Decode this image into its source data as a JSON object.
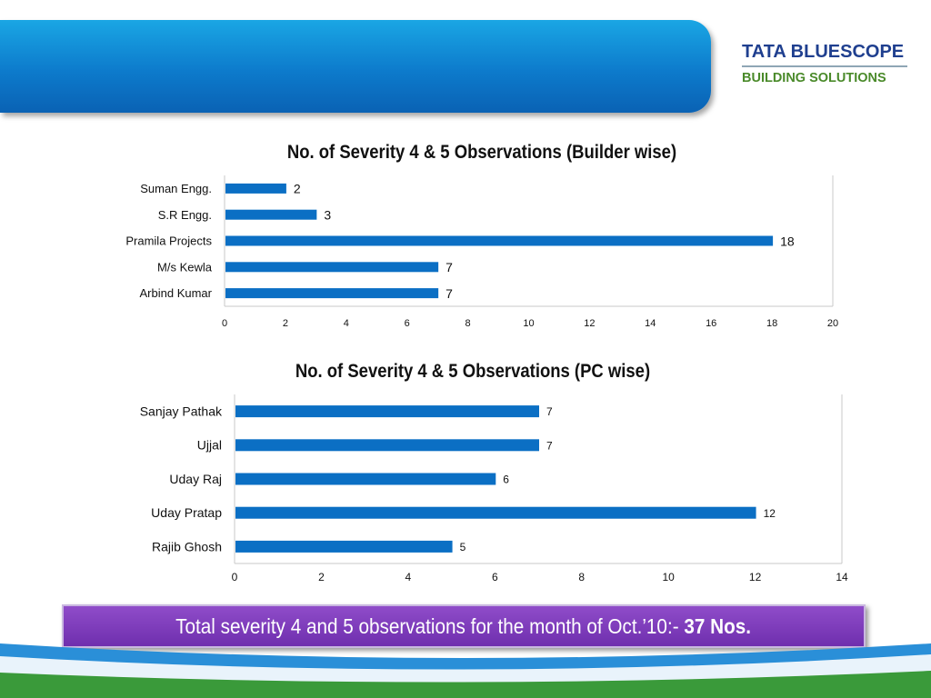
{
  "logo": {
    "line1": "TATA BLUESCOPE",
    "line2": "BUILDING SOLUTIONS"
  },
  "chart_data": [
    {
      "type": "bar",
      "orientation": "horizontal",
      "title": "No. of Severity 4 & 5 Observations (Builder  wise)",
      "categories": [
        "Suman Engg.",
        "S.R Engg.",
        "Pramila Projects",
        "M/s Kewla",
        "Arbind Kumar"
      ],
      "values": [
        2,
        3,
        18,
        7,
        7
      ],
      "xlim": [
        0,
        20
      ],
      "xticks": [
        0,
        2,
        4,
        6,
        8,
        10,
        12,
        14,
        16,
        18,
        20
      ],
      "bar_color": "#0b6fc4",
      "data_labels": true,
      "grid": false
    },
    {
      "type": "bar",
      "orientation": "horizontal",
      "title": "No. of Severity 4 & 5 Observations (PC  wise)",
      "categories": [
        "Sanjay Pathak",
        "Ujjal",
        "Uday Raj",
        "Uday Pratap",
        "Rajib Ghosh"
      ],
      "values": [
        7,
        7,
        6,
        12,
        5
      ],
      "xlim": [
        0,
        14
      ],
      "xticks": [
        0,
        2,
        4,
        6,
        8,
        10,
        12,
        14
      ],
      "bar_color": "#0b6fc4",
      "data_labels": true,
      "grid": false
    }
  ],
  "summary": {
    "text": "Total severity 4 and 5 observations for the month of Oct.’10:- ",
    "value": "37  Nos."
  }
}
